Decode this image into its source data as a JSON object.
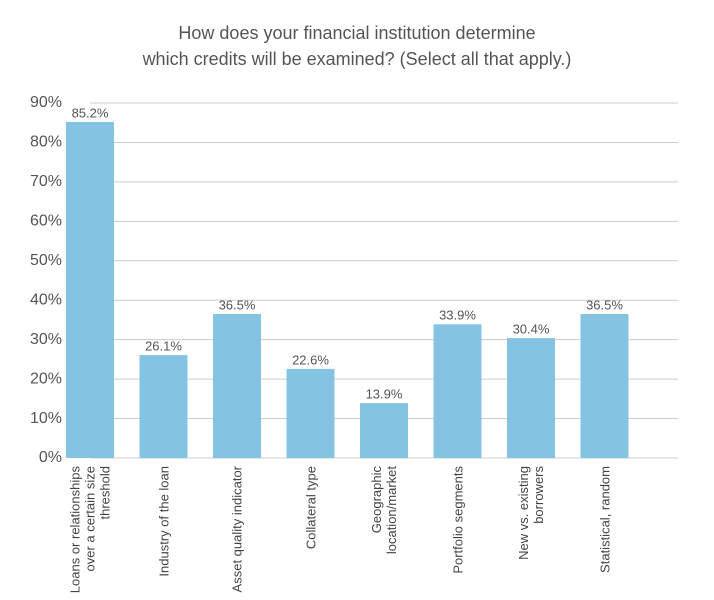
{
  "chart_data": {
    "type": "bar",
    "title": [
      "How does your financial institution determine",
      "which credits will be examined? (Select all that apply.)"
    ],
    "categories": [
      "Loans or relationships over a certain size threshold",
      "Industry of the loan",
      "Asset quality indicator",
      "Collateral type",
      "Geographic location/market",
      "Portfolio segments",
      "New vs. existing borrowers",
      "Statistical, random"
    ],
    "values": [
      85.2,
      26.1,
      36.5,
      22.6,
      13.9,
      33.9,
      30.4,
      36.5
    ],
    "value_labels": [
      "85.2%",
      "26.1%",
      "36.5%",
      "22.6%",
      "13.9%",
      "33.9%",
      "30.4%",
      "36.5%"
    ],
    "color": "#85c3e3",
    "ylim": [
      0,
      90
    ],
    "yticks": [
      {
        "value": 0,
        "label": "0%"
      },
      {
        "value": 10,
        "label": "10%"
      },
      {
        "value": 20,
        "label": "20%"
      },
      {
        "value": 30,
        "label": "30%"
      },
      {
        "value": 40,
        "label": "40%"
      },
      {
        "value": 50,
        "label": "50%"
      },
      {
        "value": 60,
        "label": "60%"
      },
      {
        "value": 70,
        "label": "70%"
      },
      {
        "value": 80,
        "label": "80%"
      },
      {
        "value": 90,
        "label": "90%"
      }
    ],
    "grid": true
  }
}
